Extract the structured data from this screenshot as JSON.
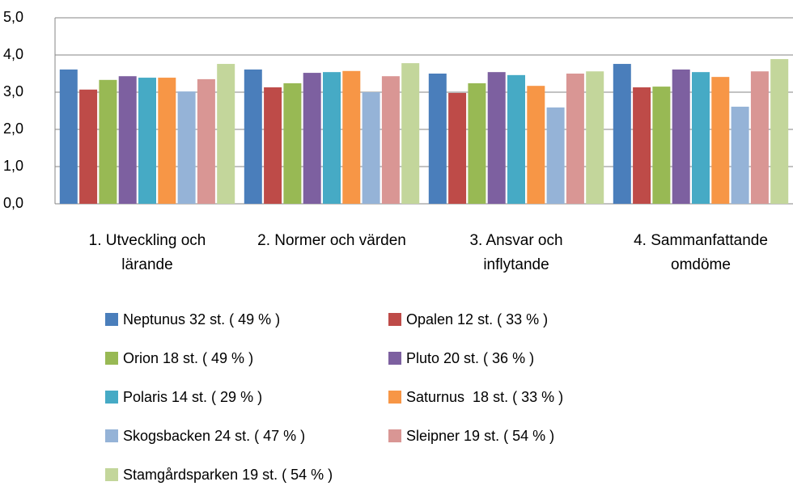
{
  "chart_data": {
    "type": "bar",
    "categories": [
      "1. Utveckling och lärande",
      "2. Normer och värden",
      "3. Ansvar och inflytande",
      "4. Sammanfattande omdöme"
    ],
    "series": [
      {
        "name": "Neptunus 32 st. ( 49 % )",
        "color": "#4a7ebb",
        "values": [
          3.61,
          3.61,
          3.5,
          3.76
        ]
      },
      {
        "name": "Opalen 12 st. ( 33 % )",
        "color": "#be4b48",
        "values": [
          3.07,
          3.13,
          2.98,
          3.13
        ]
      },
      {
        "name": "Orion 18 st. ( 49 % )",
        "color": "#98b954",
        "values": [
          3.33,
          3.24,
          3.24,
          3.15
        ]
      },
      {
        "name": "Pluto 20 st. ( 36 % )",
        "color": "#7d60a0",
        "values": [
          3.43,
          3.52,
          3.54,
          3.61
        ]
      },
      {
        "name": "Polaris 14 st. ( 29 % )",
        "color": "#46aac5",
        "values": [
          3.39,
          3.54,
          3.46,
          3.54
        ]
      },
      {
        "name": "Saturnus  18 st. ( 33 % )",
        "color": "#f79646",
        "values": [
          3.39,
          3.57,
          3.17,
          3.41
        ]
      },
      {
        "name": "Skogsbacken 24 st. ( 47 % )",
        "color": "#95b3d7",
        "values": [
          3.02,
          3.0,
          2.59,
          2.61
        ]
      },
      {
        "name": "Sleipner 19 st. ( 54 % )",
        "color": "#d99694",
        "values": [
          3.35,
          3.43,
          3.5,
          3.56
        ]
      },
      {
        "name": "Stamgårdsparken 19 st. ( 54 % )",
        "color": "#c3d69b",
        "values": [
          3.76,
          3.78,
          3.56,
          3.89
        ]
      }
    ],
    "ylim": [
      0,
      5
    ],
    "yticks": [
      {
        "value": 0,
        "label": "0,0"
      },
      {
        "value": 1,
        "label": "1,0"
      },
      {
        "value": 2,
        "label": "2,0"
      },
      {
        "value": 3,
        "label": "3,0"
      },
      {
        "value": 4,
        "label": "4,0"
      },
      {
        "value": 5,
        "label": "5,0"
      }
    ],
    "grid": true
  }
}
